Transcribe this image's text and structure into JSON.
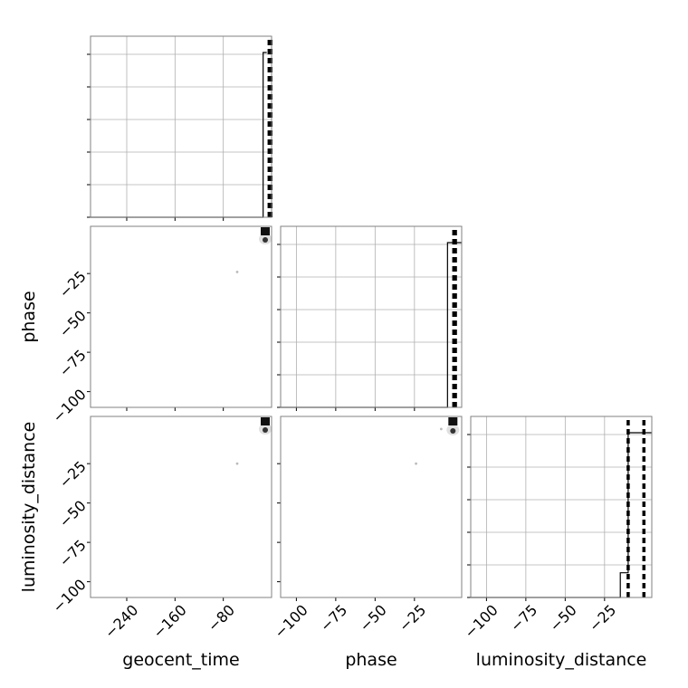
{
  "chart_data": {
    "type": "corner",
    "parameters": [
      "geocent_time",
      "phase",
      "luminosity_distance"
    ],
    "axis_labels": {
      "x": [
        "geocent_time",
        "phase",
        "luminosity_distance"
      ],
      "y": [
        "",
        "phase",
        "luminosity_distance"
      ]
    },
    "ranges": {
      "geocent_time": [
        -300,
        0
      ],
      "phase": [
        -110,
        5
      ],
      "luminosity_distance": [
        -110,
        5
      ]
    },
    "x_ticks": {
      "geocent_time": [
        -240,
        -160,
        -80
      ],
      "phase": [
        -100,
        -75,
        -50,
        -25
      ],
      "luminosity_distance": [
        -100,
        -75,
        -50,
        -25
      ]
    },
    "y_ticks": {
      "phase": [
        -25,
        -50,
        -75,
        -100
      ],
      "luminosity_distance": [
        -25,
        -50,
        -75,
        -100
      ]
    },
    "x_tick_labels": {
      "geocent_time": [
        "−240",
        "−160",
        "−80"
      ],
      "phase": [
        "−100",
        "−75",
        "−50",
        "−25"
      ],
      "luminosity_distance": [
        "−100",
        "−75",
        "−50",
        "−25"
      ]
    },
    "y_tick_labels": {
      "phase": [
        "−25",
        "−50",
        "−75",
        "−100"
      ],
      "luminosity_distance": [
        "−25",
        "−50",
        "−75",
        "−100"
      ]
    },
    "grid": true,
    "diagonal_panels": [
      {
        "parameter": "geocent_time",
        "histogram_bins": [
          [
            -300,
            -14,
            0
          ],
          [
            -14,
            -8,
            1
          ]
        ],
        "marker_lines_x": [
          -4,
          -1
        ]
      },
      {
        "parameter": "phase",
        "histogram_bins": [
          [
            -110,
            -4,
            0
          ],
          [
            -4,
            5,
            1
          ]
        ],
        "marker_lines_x": [
          0,
          1
        ]
      },
      {
        "parameter": "luminosity_distance",
        "histogram_bins": [
          [
            -110,
            -15,
            0
          ],
          [
            -15,
            -10,
            0.15
          ],
          [
            -10,
            5,
            1
          ]
        ],
        "marker_lines_x": [
          -10,
          0
        ]
      }
    ],
    "scatter_panels": [
      {
        "x": "geocent_time",
        "y": "phase",
        "cluster": [
          -2,
          2
        ],
        "outliers": [
          [
            -57,
            -24
          ]
        ]
      },
      {
        "x": "geocent_time",
        "y": "luminosity_distance",
        "cluster": [
          -2,
          2
        ],
        "outliers": [
          [
            -57,
            -25
          ]
        ]
      },
      {
        "x": "phase",
        "y": "luminosity_distance",
        "cluster": [
          0,
          1
        ],
        "outliers": [
          [
            -24,
            -25
          ],
          [
            -8,
            -3
          ]
        ]
      }
    ]
  }
}
